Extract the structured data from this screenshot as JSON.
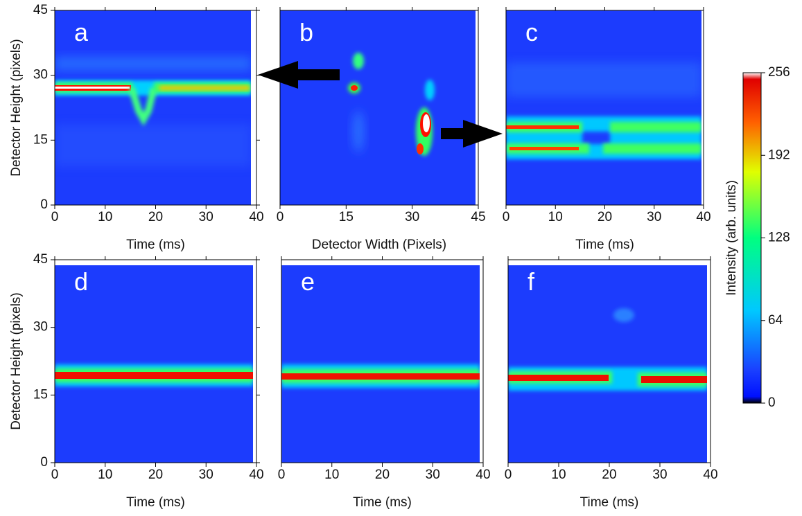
{
  "chart_data": [
    {
      "type": "heatmap",
      "panel_label": "a",
      "xlabel": "Time (ms)",
      "ylabel": "Detector Height (pixels)",
      "xlim": [
        0,
        40
      ],
      "xticks": [
        0,
        10,
        20,
        30,
        40
      ],
      "ylim": [
        0,
        45
      ],
      "yticks": [
        0,
        15,
        30,
        45
      ]
    },
    {
      "type": "heatmap",
      "panel_label": "b",
      "xlabel": "Detector Width (Pixels)",
      "xlim": [
        0,
        45
      ],
      "xticks": [
        0,
        15,
        30,
        45
      ],
      "ylim": [
        0,
        45
      ]
    },
    {
      "type": "heatmap",
      "panel_label": "c",
      "xlabel": "Time (ms)",
      "xlim": [
        0,
        40
      ],
      "xticks": [
        0,
        10,
        20,
        30,
        40
      ],
      "ylim": [
        0,
        45
      ]
    },
    {
      "type": "heatmap",
      "panel_label": "d",
      "xlabel": "Time (ms)",
      "ylabel": "Detector Height (pixels)",
      "xlim": [
        0,
        40
      ],
      "xticks": [
        0,
        10,
        20,
        30,
        40
      ],
      "ylim": [
        0,
        45
      ],
      "yticks": [
        0,
        15,
        30,
        45
      ]
    },
    {
      "type": "heatmap",
      "panel_label": "e",
      "xlabel": "Time (ms)",
      "xlim": [
        0,
        40
      ],
      "xticks": [
        0,
        10,
        20,
        30,
        40
      ],
      "ylim": [
        0,
        45
      ]
    },
    {
      "type": "heatmap",
      "panel_label": "f",
      "xlabel": "Time (ms)",
      "xlim": [
        0,
        40
      ],
      "xticks": [
        0,
        10,
        20,
        30,
        40
      ],
      "ylim": [
        0,
        45
      ]
    },
    {
      "type": "colorbar",
      "label": "Intensity (arb. units)",
      "ylim": [
        0,
        256
      ],
      "yticks": [
        0,
        64,
        128,
        192,
        256
      ],
      "colormap": [
        "#000000",
        "#0010ff",
        "#1a40ff",
        "#00c8ff",
        "#00ff80",
        "#e0ff00",
        "#ff6000",
        "#e00000",
        "#ffffff"
      ]
    }
  ]
}
